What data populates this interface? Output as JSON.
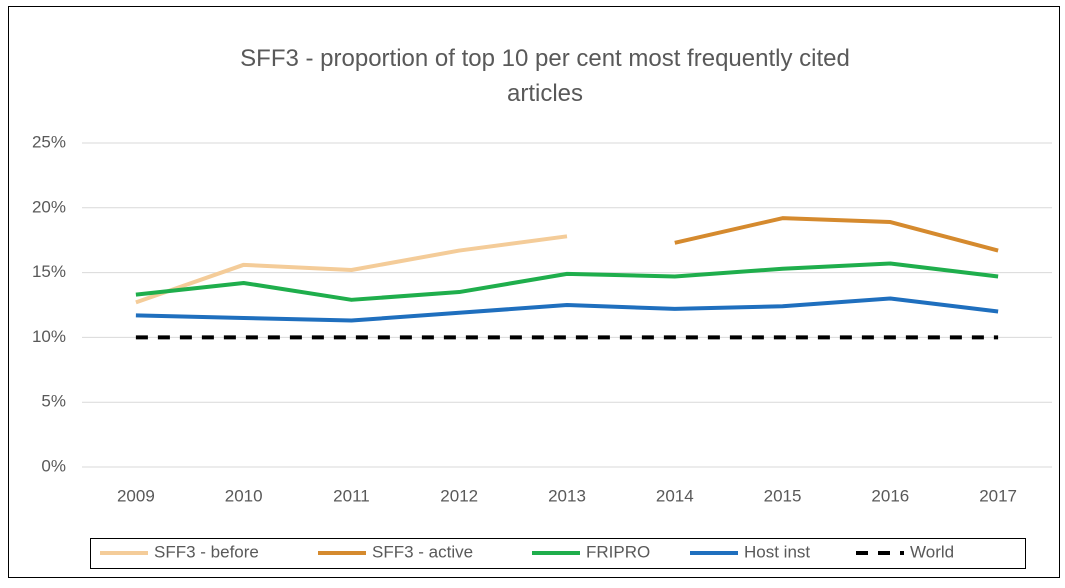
{
  "chart_data": {
    "type": "line",
    "title": "SFF3 - proportion of top 10 per cent most frequently cited articles",
    "categories": [
      "2009",
      "2010",
      "2011",
      "2012",
      "2013",
      "2014",
      "2015",
      "2016",
      "2017"
    ],
    "series": [
      {
        "name": "SFF3 - before",
        "color": "#f4cc99",
        "values": [
          12.7,
          15.6,
          15.2,
          16.7,
          17.8,
          null,
          null,
          null,
          null
        ]
      },
      {
        "name": "SFF3 - active",
        "color": "#d58a2e",
        "values": [
          null,
          null,
          null,
          null,
          null,
          17.3,
          19.2,
          18.9,
          16.7
        ]
      },
      {
        "name": "FRIPRO",
        "color": "#1fae4c",
        "values": [
          13.3,
          14.2,
          12.9,
          13.5,
          14.9,
          14.7,
          15.3,
          15.7,
          14.7
        ]
      },
      {
        "name": "Host inst",
        "color": "#1f6fbe",
        "values": [
          11.7,
          11.5,
          11.3,
          11.9,
          12.5,
          12.2,
          12.4,
          13.0,
          12.0
        ]
      },
      {
        "name": "World",
        "color": "#000000",
        "dashed": true,
        "values": [
          10,
          10,
          10,
          10,
          10,
          10,
          10,
          10,
          10
        ]
      }
    ],
    "ylim": [
      0,
      25
    ],
    "yticks": [
      {
        "value": 0,
        "label": "0%"
      },
      {
        "value": 5,
        "label": "5%"
      },
      {
        "value": 10,
        "label": "10%"
      },
      {
        "value": 15,
        "label": "15%"
      },
      {
        "value": 20,
        "label": "20%"
      },
      {
        "value": 25,
        "label": "25%"
      }
    ],
    "grid": true,
    "legend": "bottom"
  }
}
